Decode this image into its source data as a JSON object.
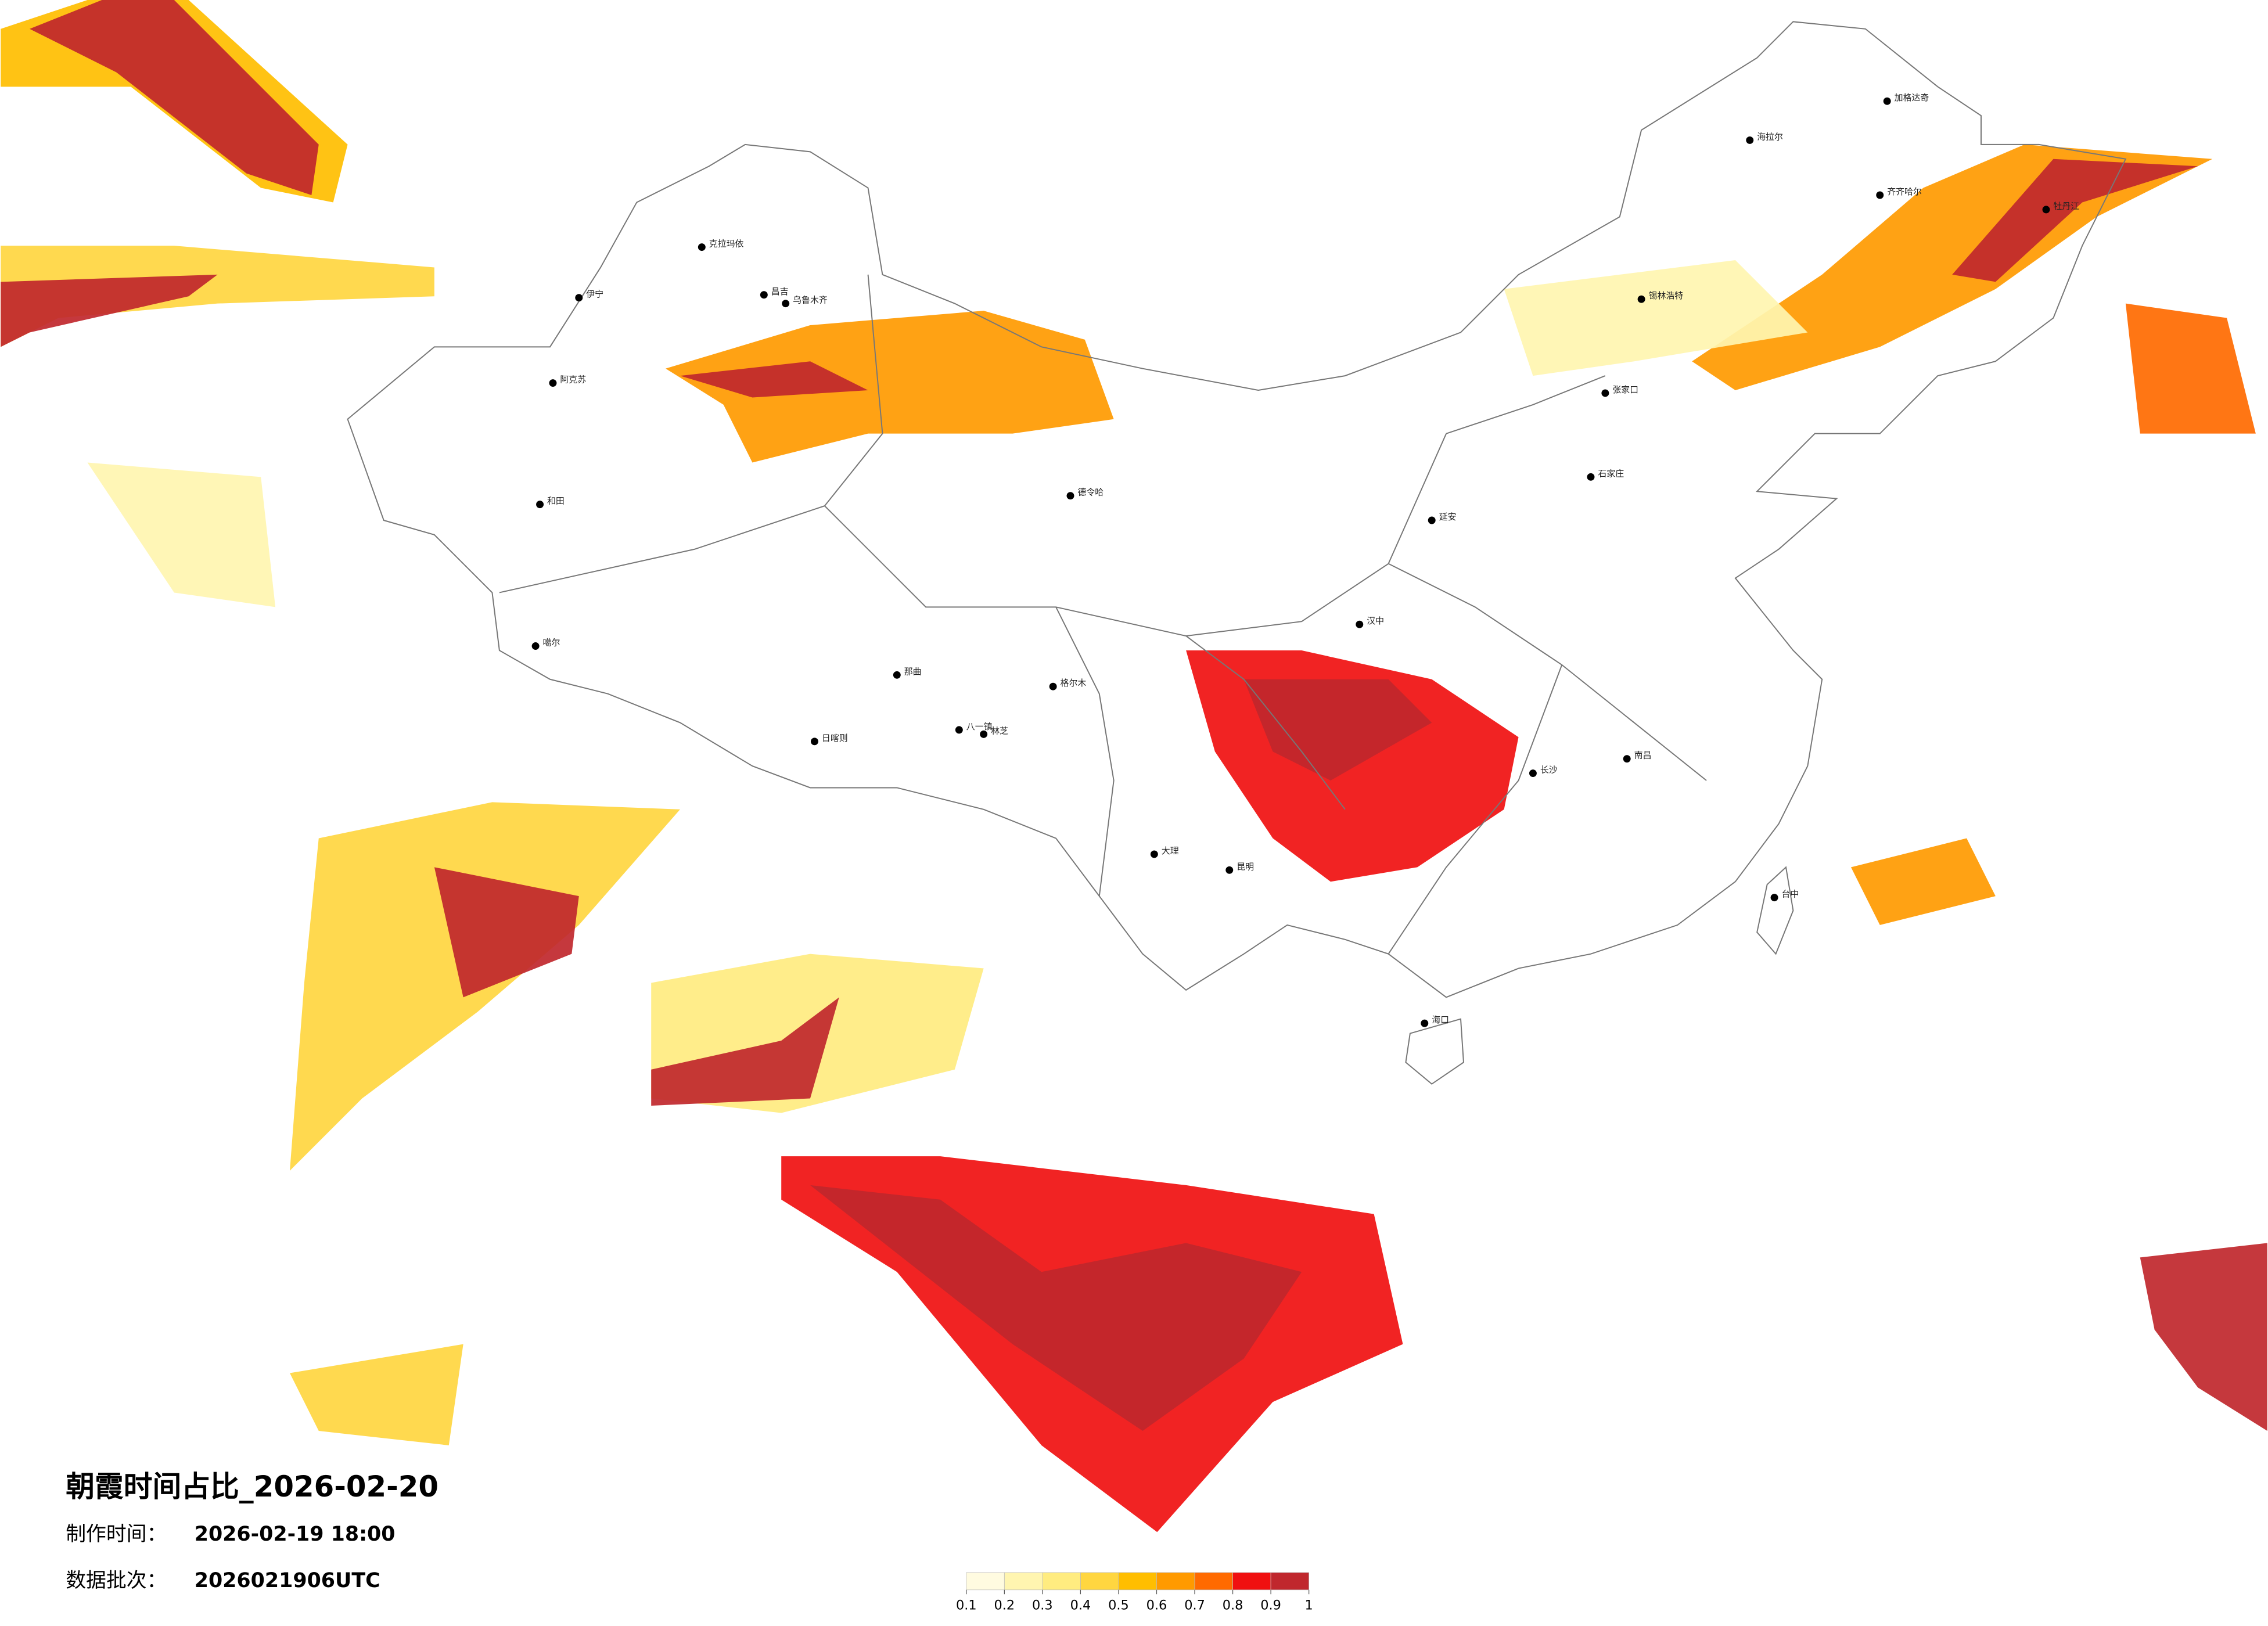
{
  "title": "朝霞时间占比_2026-02-20",
  "made_time": {
    "label": "制作时间：",
    "value": "2026-02-19 18:00"
  },
  "batch": {
    "label": "数据批次：",
    "value": "2026021906UTC"
  },
  "legend": {
    "ticks": [
      0.1,
      0.2,
      0.3,
      0.4,
      0.5,
      0.6,
      0.7,
      0.8,
      0.9,
      1
    ],
    "colors": [
      "#fffbe0",
      "#fff5b0",
      "#ffec80",
      "#ffd640",
      "#ffbe00",
      "#ff9a00",
      "#ff6a00",
      "#f01010",
      "#c0272d"
    ]
  },
  "cities": [
    "伊宁",
    "克拉玛依",
    "昌吉",
    "乌鲁木齐",
    "阿克苏",
    "和田",
    "噶尔",
    "德令哈",
    "格尔木",
    "那曲",
    "日喀则",
    "八一镇",
    "林芝",
    "大理",
    "昆明",
    "海口",
    "台中",
    "海拉尔",
    "加格达奇",
    "齐齐哈尔",
    "锡林浩特",
    "张家口",
    "石家庄",
    "延安",
    "汉中",
    "长沙",
    "南昌",
    "牡丹江"
  ]
}
